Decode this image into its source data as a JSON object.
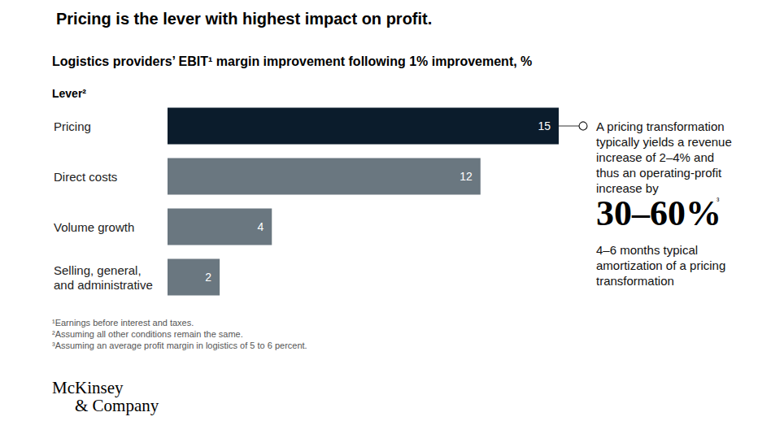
{
  "chart_data": {
    "type": "bar",
    "orientation": "horizontal",
    "title": "Pricing is the lever with highest impact on profit.",
    "subtitle": "Logistics providers’ EBIT¹ margin improvement following 1% improvement, %",
    "axis_label": "Lever²",
    "categories": [
      "Pricing",
      "Direct costs",
      "Volume growth",
      "Selling, general, and administrative"
    ],
    "values": [
      15,
      12,
      4,
      2
    ],
    "colors": [
      "#0b1c2c",
      "#6a7780",
      "#6a7780",
      "#6a7780"
    ],
    "xlim": [
      0,
      15
    ],
    "data_labels": true,
    "tick_labels": "y",
    "grid": false,
    "annotation": {
      "text_lines": [
        "A pricing transformation",
        "typically yields a revenue",
        "increase of 2–4% and",
        "thus an operating-profit",
        "increase by"
      ],
      "highlight": "30–60%",
      "highlight_note": "³",
      "second_lines": [
        "4–6 months typical",
        "amortization of a pricing",
        "transformation"
      ]
    },
    "footnotes": [
      "¹Earnings before interest and taxes.",
      "²Assuming all other conditions remain the same.",
      "³Assuming an average profit margin in logistics of 5 to 6 percent."
    ],
    "source": [
      "McKinsey",
      "& Company"
    ]
  }
}
